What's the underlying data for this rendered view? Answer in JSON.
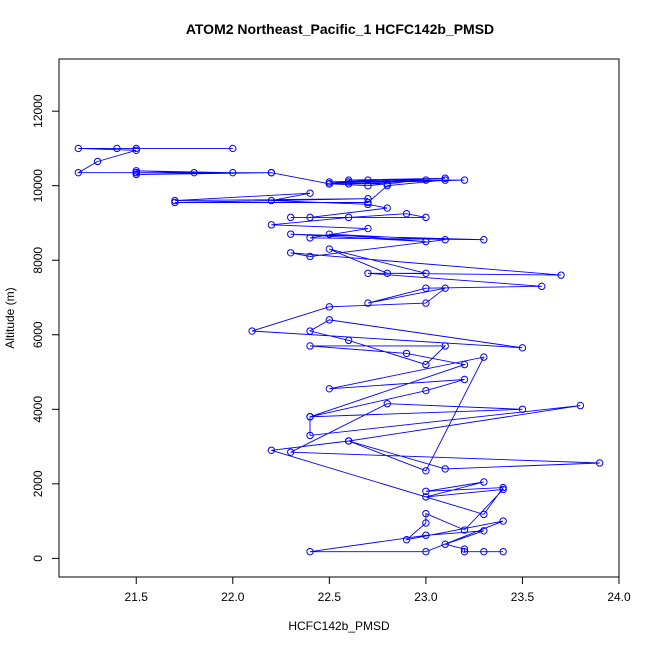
{
  "chart_data": {
    "type": "line",
    "title": "ATOM2 Northeast_Pacific_1 HCFC142b_PMSD",
    "xlabel": "HCFC142b_PMSD",
    "ylabel": "Altitude (m)",
    "xlim": [
      21.1,
      24.0
    ],
    "ylim": [
      -500,
      13400
    ],
    "xticks": [
      21.5,
      22.0,
      22.5,
      23.0,
      23.5,
      24.0
    ],
    "xtick_labels": [
      "21.5",
      "22.0",
      "22.5",
      "23.0",
      "23.5",
      "24.0"
    ],
    "yticks": [
      0,
      2000,
      4000,
      6000,
      8000,
      10000,
      12000
    ],
    "ytick_labels": [
      "0",
      "2000",
      "4000",
      "6000",
      "8000",
      "10000",
      "12000"
    ],
    "grid": false,
    "legend": "none",
    "marker": "open-circle",
    "color": "#0000ff",
    "series": [
      {
        "x": [
          23.3,
          23.4,
          23.2,
          23.2,
          23.1,
          23.3,
          23.0,
          22.4,
          23.0,
          23.4,
          22.9,
          23.0,
          23.0,
          23.2,
          23.4,
          23.0,
          23.3,
          23.0,
          23.4,
          23.3,
          22.2,
          22.6,
          23.8,
          22.4,
          22.4,
          23.5,
          22.8,
          22.3,
          23.9,
          23.1,
          22.6,
          23.0,
          23.3,
          22.5,
          23.2,
          23.0,
          22.4,
          23.2,
          22.9,
          22.4,
          23.1,
          23.0,
          22.6,
          22.4,
          22.5,
          23.5,
          22.1,
          22.5,
          23.0,
          23.1,
          22.7,
          23.0,
          23.6,
          22.7,
          23.0,
          22.5,
          22.8,
          23.7,
          22.3,
          22.4,
          23.1,
          22.5,
          23.0,
          22.3,
          23.3,
          22.4,
          22.7,
          22.2,
          22.6,
          22.9,
          23.0,
          22.3,
          22.4,
          22.8,
          22.7,
          22.2,
          22.4,
          21.7,
          22.7,
          21.7,
          22.7,
          22.8,
          23.1,
          22.6,
          22.5,
          22.7,
          23.0,
          22.6,
          22.8,
          22.5,
          23.1,
          22.6,
          22.7,
          23.2,
          22.5,
          22.2,
          21.5,
          22.2,
          21.5,
          22.0,
          21.5,
          21.8,
          21.5,
          21.2,
          21.3,
          21.5,
          21.2,
          21.4,
          21.5,
          22.0
        ],
        "y": [
          180,
          180,
          180,
          250,
          380,
          740,
          620,
          180,
          180,
          1000,
          500,
          950,
          1200,
          760,
          1850,
          1650,
          2050,
          1800,
          1900,
          1180,
          2900,
          3150,
          4100,
          3300,
          3800,
          4000,
          4150,
          2850,
          2560,
          2400,
          3150,
          2350,
          5400,
          4550,
          4800,
          4500,
          3800,
          5200,
          5500,
          5700,
          5700,
          5200,
          5850,
          6100,
          6400,
          5650,
          6100,
          6750,
          6850,
          7250,
          6850,
          7250,
          7300,
          7650,
          7650,
          8300,
          7650,
          7600,
          8200,
          8100,
          8550,
          8700,
          8500,
          8700,
          8550,
          8600,
          8850,
          8950,
          9150,
          9250,
          9150,
          9150,
          9150,
          9400,
          9500,
          9600,
          9800,
          9600,
          9650,
          9550,
          9550,
          10000,
          10150,
          10100,
          10050,
          10000,
          10150,
          10050,
          10050,
          10100,
          10200,
          10150,
          10150,
          10150,
          10050,
          10350,
          10350,
          10350,
          10300,
          10350,
          10400,
          10350,
          10350,
          10350,
          10650,
          10950,
          11000,
          11000,
          11000,
          11000
        ]
      }
    ]
  }
}
